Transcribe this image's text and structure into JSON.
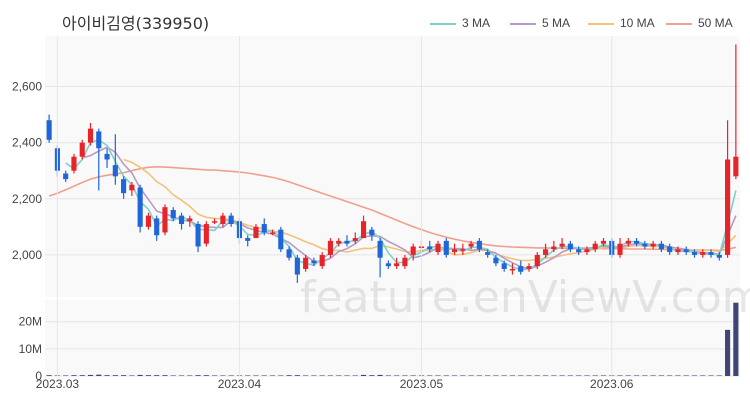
{
  "title": "아이비김영(339950)",
  "watermark": "feature.enViewV.com",
  "colors": {
    "up": "#e8242b",
    "down": "#1f66d8",
    "ma3": "#7fd0c8",
    "ma5": "#b59cc8",
    "ma10": "#f2c27a",
    "ma50": "#f0a090",
    "volume": "#3f4677",
    "grid": "#e6e6e6",
    "plot_bg": "#f9f9f9"
  },
  "legend": [
    {
      "label": "3 MA",
      "color": "#7fd0c8"
    },
    {
      "label": "5 MA",
      "color": "#b59cc8"
    },
    {
      "label": "10 MA",
      "color": "#f2c27a"
    },
    {
      "label": "50 MA",
      "color": "#f0a090"
    }
  ],
  "chart_data": {
    "type": "candlestick",
    "title": "아이비김영(339950)",
    "price_axis": {
      "ylim": [
        1850,
        2780
      ],
      "ticks": [
        2000,
        2200,
        2400,
        2600
      ],
      "tick_labels": [
        "2,000",
        "2,200",
        "2,400",
        "2,600"
      ]
    },
    "volume_axis": {
      "ylim": [
        0,
        28
      ],
      "ticks": [
        0,
        10,
        20
      ],
      "tick_labels": [
        "0",
        "10M",
        "20M"
      ]
    },
    "x_tick_labels": [
      {
        "label": "2023.03",
        "index": 1
      },
      {
        "label": "2023.04",
        "index": 23
      },
      {
        "label": "2023.05",
        "index": 45
      },
      {
        "label": "2023.06",
        "index": 68
      }
    ],
    "candles": [
      [
        2480,
        2410,
        2500,
        2400
      ],
      [
        2380,
        2300,
        2390,
        2280
      ],
      [
        2290,
        2270,
        2300,
        2260
      ],
      [
        2300,
        2350,
        2360,
        2290
      ],
      [
        2350,
        2400,
        2410,
        2340
      ],
      [
        2400,
        2450,
        2470,
        2390
      ],
      [
        2440,
        2380,
        2450,
        2230
      ],
      [
        2360,
        2340,
        2380,
        2310
      ],
      [
        2320,
        2280,
        2430,
        2250
      ],
      [
        2270,
        2220,
        2280,
        2200
      ],
      [
        2230,
        2250,
        2260,
        2210
      ],
      [
        2240,
        2100,
        2250,
        2080
      ],
      [
        2100,
        2140,
        2150,
        2090
      ],
      [
        2130,
        2070,
        2140,
        2050
      ],
      [
        2080,
        2170,
        2180,
        2070
      ],
      [
        2160,
        2130,
        2170,
        2120
      ],
      [
        2140,
        2110,
        2150,
        2090
      ],
      [
        2120,
        2130,
        2140,
        2100
      ],
      [
        2110,
        2030,
        2120,
        2010
      ],
      [
        2040,
        2110,
        2120,
        2030
      ],
      [
        2120,
        2120,
        2130,
        2110
      ],
      [
        2110,
        2140,
        2150,
        2100
      ],
      [
        2140,
        2110,
        2150,
        2100
      ],
      [
        2120,
        2060,
        2130,
        2040
      ],
      [
        2060,
        2050,
        2070,
        2030
      ],
      [
        2060,
        2100,
        2110,
        2060
      ],
      [
        2110,
        2080,
        2130,
        2070
      ],
      [
        2080,
        2080,
        2090,
        2070
      ],
      [
        2090,
        2020,
        2100,
        2010
      ],
      [
        2020,
        1990,
        2030,
        1980
      ],
      [
        1990,
        1930,
        2000,
        1900
      ],
      [
        1950,
        1990,
        2000,
        1940
      ],
      [
        1980,
        1970,
        1990,
        1960
      ],
      [
        1960,
        2000,
        2010,
        1950
      ],
      [
        2000,
        2050,
        2060,
        1990
      ],
      [
        2040,
        2050,
        2060,
        2030
      ],
      [
        2050,
        2040,
        2070,
        2030
      ],
      [
        2050,
        2060,
        2080,
        2040
      ],
      [
        2060,
        2120,
        2140,
        2060
      ],
      [
        2090,
        2070,
        2100,
        2050
      ],
      [
        2050,
        1990,
        2060,
        1920
      ],
      [
        1970,
        1960,
        1980,
        1950
      ],
      [
        1960,
        1970,
        1990,
        1950
      ],
      [
        1960,
        1990,
        2000,
        1950
      ],
      [
        2000,
        2030,
        2040,
        1980
      ],
      [
        2030,
        2030,
        2050,
        2010
      ],
      [
        2030,
        2020,
        2050,
        2010
      ],
      [
        2010,
        2040,
        2050,
        2000
      ],
      [
        2050,
        2000,
        2060,
        1990
      ],
      [
        2010,
        2020,
        2040,
        2000
      ],
      [
        2020,
        2020,
        2040,
        2000
      ],
      [
        2030,
        2040,
        2050,
        2020
      ],
      [
        2050,
        2020,
        2060,
        2010
      ],
      [
        2010,
        2000,
        2020,
        1990
      ],
      [
        1990,
        1970,
        2000,
        1960
      ],
      [
        1970,
        1950,
        1980,
        1940
      ],
      [
        1950,
        1950,
        1970,
        1930
      ],
      [
        1960,
        1940,
        1980,
        1930
      ],
      [
        1950,
        1960,
        1970,
        1940
      ],
      [
        1960,
        2000,
        2010,
        1950
      ],
      [
        2000,
        2020,
        2040,
        1990
      ],
      [
        2020,
        2030,
        2050,
        2010
      ],
      [
        2030,
        2040,
        2060,
        2020
      ],
      [
        2040,
        2020,
        2050,
        2010
      ],
      [
        2020,
        2010,
        2030,
        2000
      ],
      [
        2010,
        2020,
        2030,
        2000
      ],
      [
        2020,
        2040,
        2050,
        2010
      ],
      [
        2040,
        2050,
        2060,
        2030
      ],
      [
        2050,
        2000,
        2060,
        1990
      ],
      [
        2000,
        2040,
        2060,
        1990
      ],
      [
        2040,
        2050,
        2060,
        2030
      ],
      [
        2050,
        2040,
        2060,
        2030
      ],
      [
        2040,
        2030,
        2050,
        2020
      ],
      [
        2030,
        2040,
        2050,
        2020
      ],
      [
        2040,
        2020,
        2050,
        2010
      ],
      [
        2030,
        2010,
        2040,
        2000
      ],
      [
        2010,
        2020,
        2030,
        2000
      ],
      [
        2020,
        2010,
        2030,
        2000
      ],
      [
        2010,
        2000,
        2020,
        1990
      ],
      [
        2000,
        2010,
        2020,
        1990
      ],
      [
        2010,
        2000,
        2020,
        1990
      ],
      [
        2000,
        1990,
        2010,
        1980
      ],
      [
        2000,
        2340,
        2480,
        1990
      ],
      [
        2280,
        2350,
        2750,
        2270
      ]
    ],
    "volumes": [
      0.3,
      0.2,
      0.2,
      0.3,
      0.3,
      0.4,
      0.5,
      0.3,
      0.3,
      0.3,
      0.2,
      0.4,
      0.3,
      0.3,
      0.3,
      0.2,
      0.2,
      0.2,
      0.3,
      0.3,
      0.2,
      0.2,
      0.2,
      0.2,
      0.2,
      0.2,
      0.2,
      0.2,
      0.2,
      0.3,
      0.3,
      0.2,
      0.2,
      0.2,
      0.2,
      0.2,
      0.2,
      0.2,
      0.4,
      0.3,
      0.4,
      0.2,
      0.2,
      0.2,
      0.2,
      0.2,
      0.2,
      0.2,
      0.2,
      0.2,
      0.2,
      0.2,
      0.2,
      0.2,
      0.2,
      0.2,
      0.2,
      0.2,
      0.2,
      0.2,
      0.2,
      0.2,
      0.2,
      0.2,
      0.2,
      0.2,
      0.2,
      0.2,
      0.2,
      0.2,
      0.2,
      0.2,
      0.2,
      0.2,
      0.2,
      0.2,
      0.2,
      0.2,
      0.2,
      0.2,
      0.2,
      0.2,
      17,
      27
    ],
    "ma3": [
      null,
      null,
      2327,
      2307,
      2340,
      2400,
      2410,
      2390,
      2333,
      2280,
      2250,
      2190,
      2163,
      2103,
      2127,
      2123,
      2137,
      2123,
      2090,
      2090,
      2087,
      2123,
      2123,
      2103,
      2073,
      2070,
      2080,
      2087,
      2060,
      2030,
      1980,
      1970,
      1963,
      1987,
      2007,
      2040,
      2047,
      2050,
      2073,
      2083,
      2060,
      2007,
      1973,
      1973,
      1997,
      2010,
      2027,
      2030,
      2020,
      2020,
      2013,
      2027,
      2027,
      2020,
      1990,
      1973,
      1957,
      1947,
      1950,
      1967,
      1993,
      2017,
      2030,
      2030,
      2023,
      2017,
      2023,
      2037,
      2030,
      2030,
      2047,
      2047,
      2040,
      2037,
      2030,
      2023,
      2013,
      2013,
      2010,
      2003,
      2003,
      2000,
      2110,
      2230
    ],
    "ma5": [
      null,
      null,
      null,
      null,
      2346,
      2354,
      2370,
      2384,
      2366,
      2324,
      2292,
      2238,
      2198,
      2156,
      2146,
      2136,
      2124,
      2120,
      2106,
      2100,
      2098,
      2098,
      2122,
      2112,
      2096,
      2088,
      2080,
      2074,
      2058,
      2044,
      2020,
      1998,
      1976,
      1976,
      1988,
      2012,
      2022,
      2040,
      2064,
      2068,
      2066,
      2048,
      2034,
      2018,
      1990,
      1996,
      2010,
      2026,
      2024,
      2022,
      2022,
      2016,
      2020,
      2016,
      2006,
      1988,
      1972,
      1958,
      1950,
      1960,
      1974,
      1990,
      2010,
      2022,
      2024,
      2024,
      2026,
      2032,
      2024,
      2026,
      2036,
      2040,
      2036,
      2036,
      2036,
      2028,
      2024,
      2018,
      2012,
      2008,
      2006,
      2002,
      2070,
      2140
    ],
    "ma10": [
      null,
      null,
      null,
      null,
      null,
      null,
      null,
      null,
      null,
      2340,
      2330,
      2312,
      2291,
      2261,
      2243,
      2214,
      2195,
      2173,
      2145,
      2134,
      2130,
      2129,
      2125,
      2117,
      2105,
      2098,
      2093,
      2084,
      2081,
      2072,
      2060,
      2047,
      2036,
      2022,
      2016,
      2016,
      2010,
      2017,
      2023,
      2023,
      2034,
      2028,
      2021,
      2012,
      2010,
      2016,
      2016,
      2022,
      2014,
      2000,
      2002,
      2008,
      2018,
      2016,
      2004,
      1994,
      1986,
      1980,
      1980,
      1984,
      1988,
      1992,
      1998,
      2004,
      2008,
      2014,
      2020,
      2026,
      2024,
      2024,
      2030,
      2034,
      2032,
      2030,
      2030,
      2026,
      2024,
      2020,
      2018,
      2016,
      2016,
      2012,
      2040,
      2070
    ],
    "ma50": [
      2210,
      2220,
      2232,
      2245,
      2258,
      2270,
      2278,
      2284,
      2288,
      2293,
      2300,
      2307,
      2312,
      2314,
      2313,
      2311,
      2309,
      2307,
      2305,
      2303,
      2302,
      2300,
      2298,
      2295,
      2292,
      2287,
      2282,
      2276,
      2269,
      2260,
      2250,
      2240,
      2230,
      2220,
      2210,
      2200,
      2190,
      2180,
      2170,
      2160,
      2148,
      2136,
      2124,
      2112,
      2100,
      2090,
      2080,
      2071,
      2063,
      2056,
      2050,
      2045,
      2040,
      2036,
      2032,
      2030,
      2028,
      2027,
      2026,
      2025,
      2025,
      2024,
      2024,
      2023,
      2023,
      2023,
      2023,
      2022,
      2022,
      2022,
      2021,
      2021,
      2021,
      2020,
      2020,
      2019,
      2019,
      2018,
      2018,
      2017,
      2017,
      2016,
      2020,
      2027
    ]
  }
}
